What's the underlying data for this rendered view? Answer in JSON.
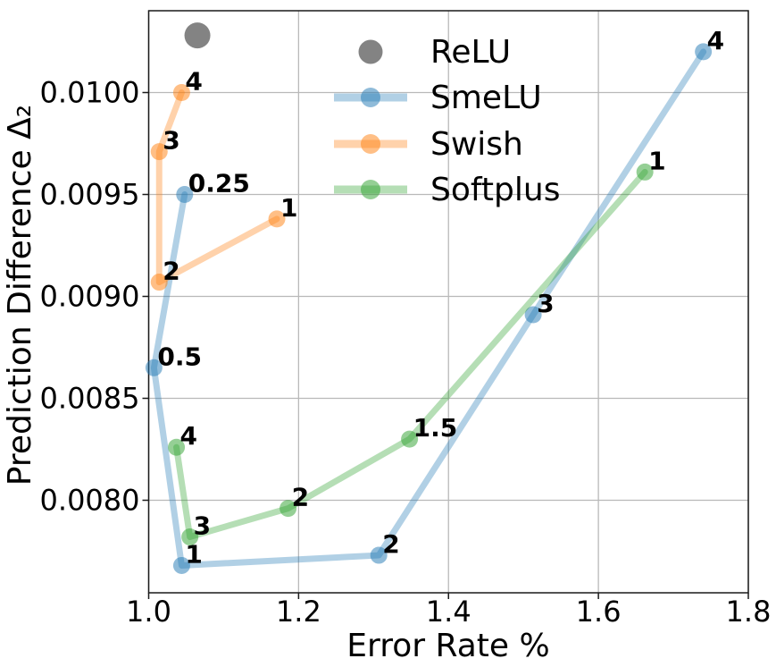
{
  "chart_data": {
    "type": "line",
    "title": "",
    "xlabel": "Error Rate %",
    "ylabel": "Prediction Difference Δ₂",
    "xlim": [
      1.0,
      1.8
    ],
    "ylim": [
      0.00755,
      0.0104
    ],
    "grid": true,
    "legend_position": "upper center inside",
    "x_ticks": [
      {
        "v": 1.0,
        "label": "1.0"
      },
      {
        "v": 1.2,
        "label": "1.2"
      },
      {
        "v": 1.4,
        "label": "1.4"
      },
      {
        "v": 1.6,
        "label": "1.6"
      },
      {
        "v": 1.8,
        "label": "1.8"
      }
    ],
    "y_ticks": [
      {
        "v": 0.008,
        "label": "0.0080"
      },
      {
        "v": 0.0085,
        "label": "0.0085"
      },
      {
        "v": 0.009,
        "label": "0.0090"
      },
      {
        "v": 0.0095,
        "label": "0.0095"
      },
      {
        "v": 0.01,
        "label": "0.0100"
      }
    ],
    "series": [
      {
        "name": "ReLU",
        "color": "#7c7c7c",
        "style": "scatter-only",
        "points": [
          {
            "x": 1.065,
            "y": 0.01028,
            "label": ""
          }
        ]
      },
      {
        "name": "SmeLU",
        "color": "#1f77b4",
        "style": "line-marker",
        "points": [
          {
            "x": 1.048,
            "y": 0.0095,
            "label": "0.25"
          },
          {
            "x": 1.007,
            "y": 0.00865,
            "label": "0.5"
          },
          {
            "x": 1.044,
            "y": 0.00768,
            "label": "1"
          },
          {
            "x": 1.307,
            "y": 0.00773,
            "label": "2"
          },
          {
            "x": 1.513,
            "y": 0.00891,
            "label": "3"
          },
          {
            "x": 1.74,
            "y": 0.0102,
            "label": "4"
          }
        ]
      },
      {
        "name": "Swish",
        "color": "#ff7f0e",
        "style": "line-marker",
        "points": [
          {
            "x": 1.171,
            "y": 0.00938,
            "label": "1"
          },
          {
            "x": 1.014,
            "y": 0.00907,
            "label": "2"
          },
          {
            "x": 1.014,
            "y": 0.00971,
            "label": "3"
          },
          {
            "x": 1.044,
            "y": 0.01,
            "label": "4"
          }
        ]
      },
      {
        "name": "Softplus",
        "color": "#2ca02c",
        "style": "line-marker",
        "points": [
          {
            "x": 1.662,
            "y": 0.00961,
            "label": "1"
          },
          {
            "x": 1.348,
            "y": 0.0083,
            "label": "1.5"
          },
          {
            "x": 1.186,
            "y": 0.00796,
            "label": "2"
          },
          {
            "x": 1.055,
            "y": 0.00782,
            "label": "3"
          },
          {
            "x": 1.037,
            "y": 0.00826,
            "label": "4"
          }
        ]
      }
    ]
  },
  "colors": {
    "grid": "#b9b9b9",
    "frame": "#1a1a1a",
    "background": "#ffffff"
  }
}
